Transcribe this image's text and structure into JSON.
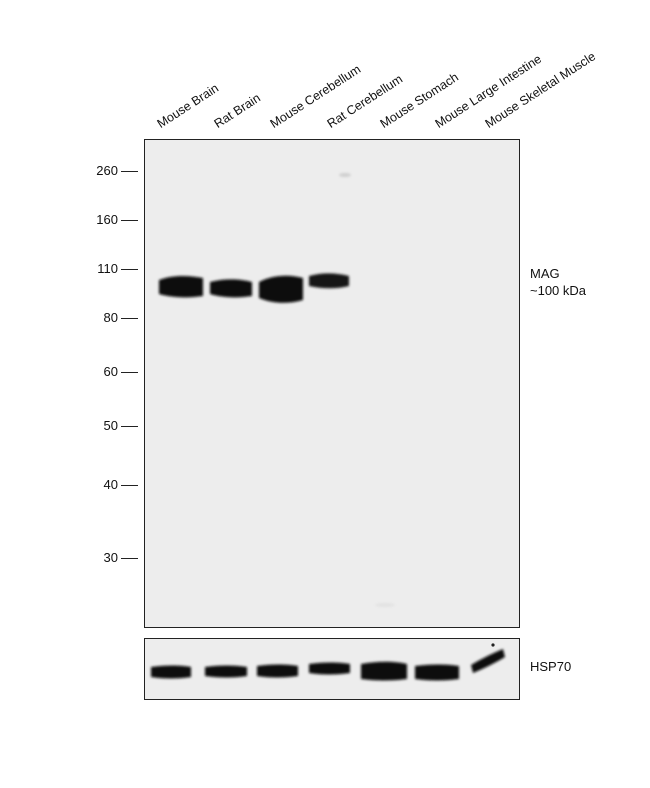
{
  "lanes": [
    "Mouse Brain",
    "Rat Brain",
    "Mouse Cerebellum",
    "Rat Cerebellum",
    "Mouse Stomach",
    "Mouse Large Intestine",
    "Mouse Skeletal Muscle"
  ],
  "markers": [
    "260",
    "160",
    "110",
    "80",
    "60",
    "50",
    "40",
    "30"
  ],
  "target": {
    "name": "MAG",
    "size": "~100 kDa"
  },
  "loading_control": "HSP70",
  "colors": {
    "membrane": "#ededed",
    "band": "#0a0a0a",
    "border": "#222222"
  }
}
